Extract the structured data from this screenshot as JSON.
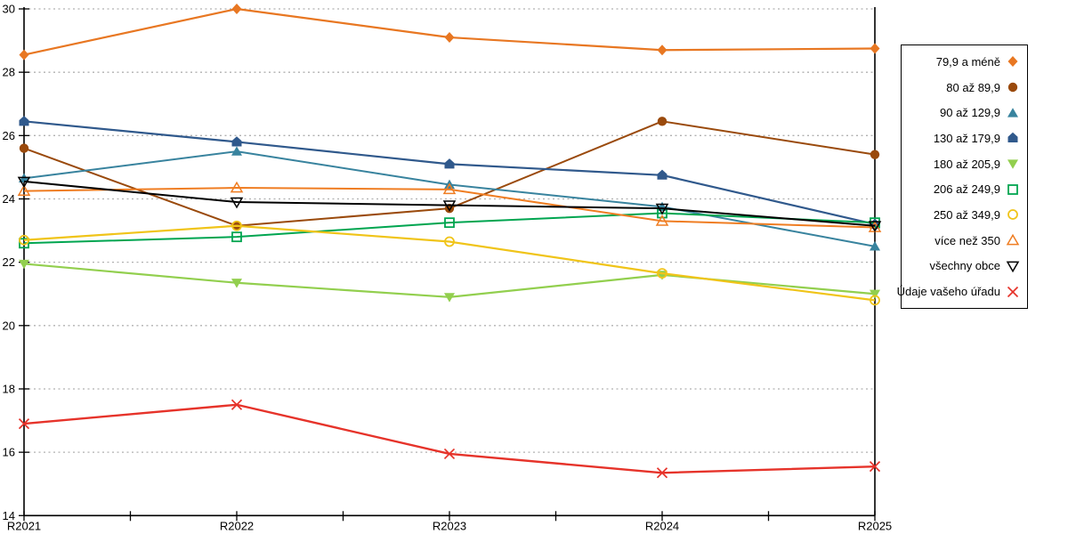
{
  "chart_data": {
    "type": "line",
    "title": "",
    "categories": [
      "R2021",
      "R2022",
      "R2023",
      "R2024",
      "R2025"
    ],
    "xlabel": "",
    "ylabel": "",
    "ylim": [
      14,
      30
    ],
    "yticks": [
      14,
      16,
      18,
      20,
      22,
      24,
      26,
      28,
      30
    ],
    "grid": "horizontal-dotted",
    "grid_color": "#b0b0b0",
    "axis_color": "#000000",
    "legend_position": "right",
    "series": [
      {
        "name": "79,9 a méně",
        "color": "#e87722",
        "marker": "diamond",
        "line_width": 2.2,
        "values": [
          28.55,
          30.0,
          29.1,
          28.7,
          28.75
        ]
      },
      {
        "name": "80 až 89,9",
        "color": "#9a4a0c",
        "marker": "circle",
        "line_width": 2.0,
        "values": [
          25.6,
          23.15,
          23.7,
          26.45,
          25.4
        ]
      },
      {
        "name": "90 až 129,9",
        "color": "#38839e",
        "marker": "triangle-up",
        "line_width": 2.0,
        "values": [
          24.65,
          25.5,
          24.45,
          23.75,
          22.5
        ]
      },
      {
        "name": "130 až 179,9",
        "color": "#30598c",
        "marker": "pentagon",
        "line_width": 2.2,
        "values": [
          26.45,
          25.8,
          25.1,
          24.75,
          23.2
        ]
      },
      {
        "name": "180 až 205,9",
        "color": "#92cf4e",
        "marker": "triangle-down",
        "line_width": 2.2,
        "values": [
          21.95,
          21.35,
          20.9,
          21.6,
          21.0
        ]
      },
      {
        "name": "206 až 249,9",
        "color": "#00a550",
        "marker": "square-open",
        "line_width": 2.0,
        "values": [
          22.6,
          22.8,
          23.25,
          23.55,
          23.25
        ]
      },
      {
        "name": "250 až 349,9",
        "color": "#f0c419",
        "marker": "circle-open",
        "line_width": 2.2,
        "values": [
          22.7,
          23.15,
          22.65,
          21.65,
          20.8
        ]
      },
      {
        "name": "více než 350",
        "color": "#ef7d22",
        "marker": "triangle-up-open",
        "line_width": 2.0,
        "values": [
          24.25,
          24.35,
          24.3,
          23.3,
          23.1
        ]
      },
      {
        "name": "všechny obce",
        "color": "#000000",
        "marker": "triangle-down-open",
        "line_width": 2.0,
        "values": [
          24.55,
          23.9,
          23.8,
          23.7,
          23.15
        ]
      },
      {
        "name": "Údaje vašeho úřadu",
        "color": "#e6332a",
        "marker": "x-cross",
        "line_width": 2.4,
        "values": [
          16.9,
          17.5,
          15.95,
          15.35,
          15.55
        ]
      }
    ]
  }
}
